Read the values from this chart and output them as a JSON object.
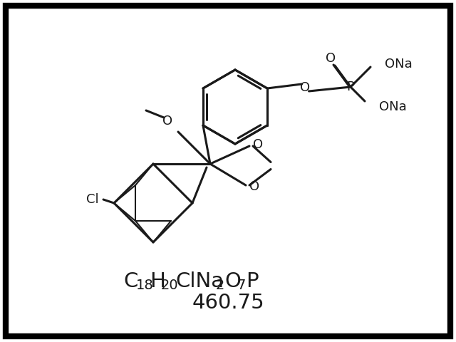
{
  "title": "",
  "formula_line1": "C",
  "formula_sub1": "18",
  "formula_mid": "H",
  "formula_sub2": "20",
  "formula_end": "ClNa",
  "formula_sub3": "2",
  "formula_end2": "O",
  "formula_sub4": "7",
  "formula_end3": "P",
  "mol_weight": "460.75",
  "bg_color": "#ffffff",
  "line_color": "#1a1a1a",
  "border_color": "#000000",
  "font_size_formula": 22,
  "font_size_weight": 22
}
